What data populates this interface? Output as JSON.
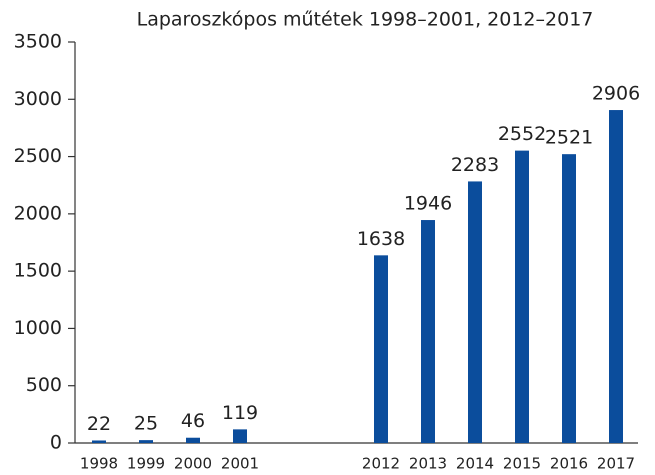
{
  "chart_data": {
    "type": "bar",
    "title": "Laparoszkópos műtétek 1998–2001, 2012–2017",
    "categories": [
      "1998",
      "1999",
      "2000",
      "2001",
      null,
      null,
      "2012",
      "2013",
      "2014",
      "2015",
      "2016",
      "2017"
    ],
    "values": [
      22,
      25,
      46,
      119,
      null,
      null,
      1638,
      1946,
      2283,
      2552,
      2521,
      2906
    ],
    "color": "#0b4d9c",
    "ylim": [
      0,
      3500
    ],
    "yticks": [
      0,
      500,
      1000,
      1500,
      2000,
      2500,
      3000,
      3500
    ]
  }
}
